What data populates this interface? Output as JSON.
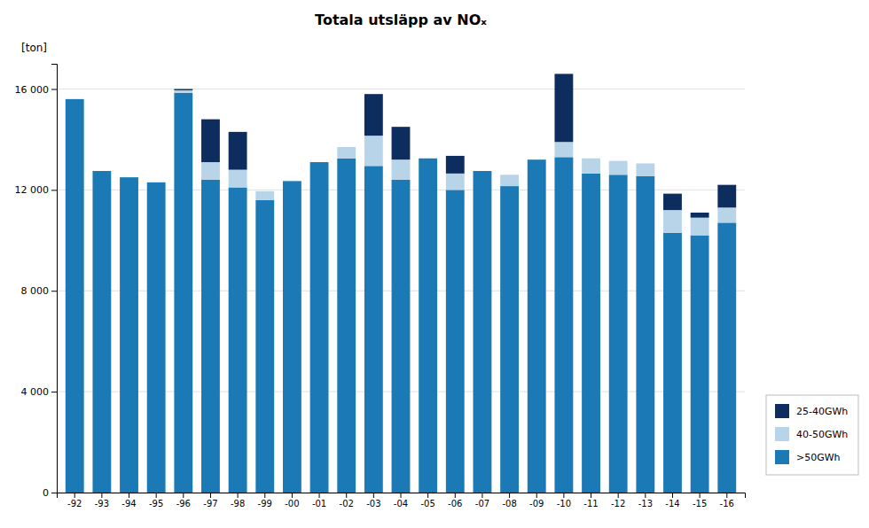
{
  "chart_data": {
    "type": "bar",
    "stacked": true,
    "title": "Totala utsläpp av NOₓ",
    "ylabel": "[ton]",
    "categories": [
      "-92",
      "-93",
      "-94",
      "-95",
      "-96",
      "-97",
      "-98",
      "-99",
      "-00",
      "-01",
      "-02",
      "-03",
      "-04",
      "-05",
      "-06",
      "-07",
      "-08",
      "-09",
      "-10",
      "-11",
      "-12",
      "-13",
      "-14",
      "-15",
      "-16"
    ],
    "series": [
      {
        "name": ">50GWh",
        "color": "#1b7ab5",
        "values": [
          15600,
          12750,
          12500,
          12300,
          15850,
          12400,
          12100,
          11600,
          12350,
          13100,
          13250,
          12950,
          12400,
          13250,
          12000,
          12750,
          12150,
          13200,
          13300,
          12650,
          12600,
          12550,
          10300,
          10200,
          10700
        ]
      },
      {
        "name": "40-50GWh",
        "color": "#b8d4e8",
        "values": [
          0,
          0,
          0,
          0,
          100,
          700,
          700,
          350,
          0,
          0,
          450,
          1200,
          800,
          0,
          650,
          0,
          450,
          0,
          600,
          600,
          550,
          500,
          900,
          700,
          600
        ]
      },
      {
        "name": "25-40GWh",
        "color": "#0d2d5e",
        "values": [
          0,
          0,
          0,
          0,
          50,
          1700,
          1500,
          0,
          0,
          0,
          0,
          1650,
          1300,
          0,
          700,
          0,
          0,
          0,
          2700,
          0,
          0,
          0,
          650,
          200,
          900
        ]
      }
    ],
    "ylim": [
      0,
      17000
    ],
    "yticks": [
      0,
      {
        "value": 4000,
        "label": "4 000"
      },
      {
        "value": 8000,
        "label": "8 000"
      },
      {
        "value": 12000,
        "label": "12 000"
      },
      {
        "value": 16000,
        "label": "16 000"
      }
    ],
    "grid": true,
    "legend": "right"
  }
}
